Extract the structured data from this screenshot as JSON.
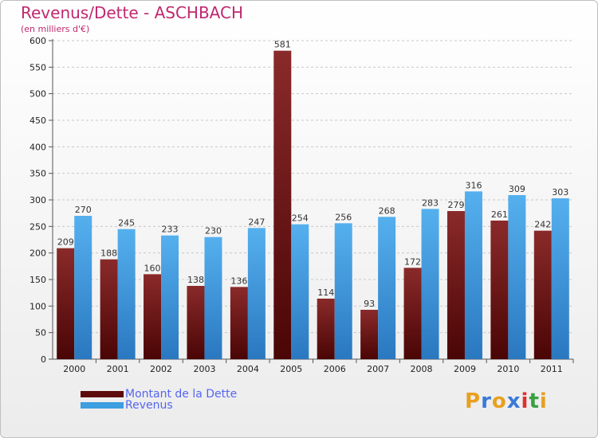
{
  "title": "Revenus/Dette - ASCHBACH",
  "subtitle": "(en milliers d'€)",
  "chart_data": {
    "type": "bar",
    "categories": [
      "2000",
      "2001",
      "2002",
      "2003",
      "2004",
      "2005",
      "2006",
      "2007",
      "2008",
      "2009",
      "2010",
      "2011"
    ],
    "series": [
      {
        "name": "Montant de la Dette",
        "color": "#7a1a1a",
        "values": [
          209,
          188,
          160,
          138,
          136,
          581,
          114,
          93,
          172,
          279,
          261,
          242
        ]
      },
      {
        "name": "Revenus",
        "color": "#3d9ee0",
        "values": [
          270,
          245,
          233,
          230,
          247,
          254,
          256,
          268,
          283,
          316,
          309,
          303
        ]
      }
    ],
    "ylim": [
      0,
      600
    ],
    "yticks": [
      0,
      50,
      100,
      150,
      200,
      250,
      300,
      350,
      400,
      450,
      500,
      550,
      600
    ],
    "grid": true,
    "legend": "bottom-left"
  },
  "logo": {
    "letters": [
      "P",
      "r",
      "o",
      "x",
      "i",
      "t",
      "i"
    ],
    "colors": [
      "#e8a020",
      "#3a7ad8",
      "#e8a020",
      "#3a7ad8",
      "#e03030",
      "#3aa040",
      "#e8a020"
    ]
  }
}
